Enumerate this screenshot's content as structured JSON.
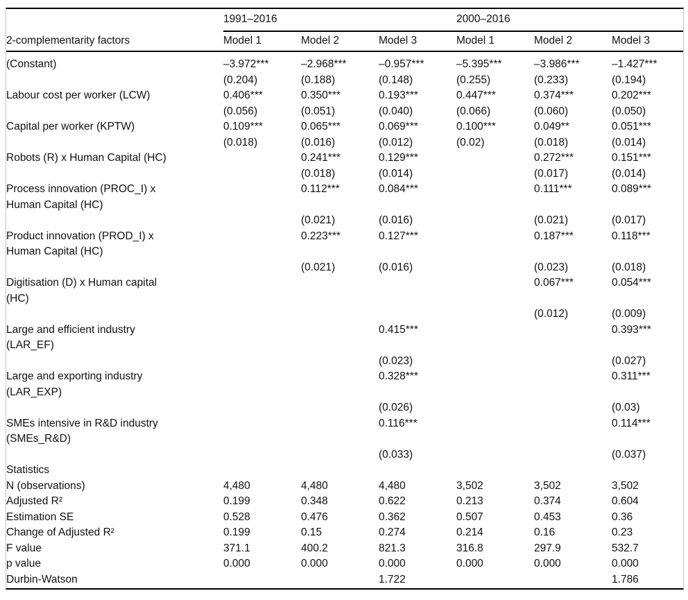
{
  "table": {
    "row_label_header": "2-complementarity factors",
    "col_groups": [
      {
        "label": "1991–2016",
        "models": [
          "Model 1",
          "Model 2",
          "Model 3"
        ]
      },
      {
        "label": "2000–2016",
        "models": [
          "Model 1",
          "Model 2",
          "Model 3"
        ]
      }
    ],
    "rows": [
      {
        "label": "(Constant)",
        "values": [
          "–3.972***",
          "–2.968***",
          "–0.957***",
          "–5.395***",
          "–3.986***",
          "–1.427***"
        ]
      },
      {
        "label": "",
        "values": [
          "(0.204)",
          "(0.188)",
          "(0.148)",
          "(0.255)",
          "(0.233)",
          "(0.194)"
        ]
      },
      {
        "label": "Labour cost per worker (LCW)",
        "values": [
          "0.406***",
          "0.350***",
          "0.193***",
          "0.447***",
          "0.374***",
          "0.202***"
        ]
      },
      {
        "label": "",
        "values": [
          "(0.056)",
          "(0.051)",
          "(0.040)",
          "(0.066)",
          "(0.060)",
          "(0.050)"
        ]
      },
      {
        "label": "Capital per worker (KPTW)",
        "values": [
          "0.109***",
          "0.065***",
          "0.069***",
          "0.100***",
          "0.049**",
          "0.051***"
        ]
      },
      {
        "label": "",
        "values": [
          "(0.018)",
          "(0.016)",
          "(0.012)",
          "(0.02)",
          "(0.018)",
          "(0.014)"
        ]
      },
      {
        "label": "Robots (R) x Human Capital (HC)",
        "values": [
          "",
          "0.241***",
          "0.129***",
          "",
          "0.272***",
          "0.151***"
        ]
      },
      {
        "label": "",
        "values": [
          "",
          "(0.018)",
          "(0.014)",
          "",
          "(0.017)",
          "(0.014)"
        ]
      },
      {
        "label": "Process innovation (PROC_I) x\nHuman Capital (HC)",
        "values": [
          "",
          "0.112***",
          "0.084***",
          "",
          "0.111***",
          "0.089***"
        ]
      },
      {
        "label": "",
        "values": [
          "",
          "(0.021)",
          "(0.016)",
          "",
          "(0.021)",
          "(0.017)"
        ]
      },
      {
        "label": "Product innovation (PROD_I) x\nHuman Capital (HC)",
        "values": [
          "",
          "0.223***",
          "0.127***",
          "",
          "0.187***",
          "0.118***"
        ]
      },
      {
        "label": "",
        "values": [
          "",
          "(0.021)",
          "(0.016)",
          "",
          "(0.023)",
          "(0.018)"
        ]
      },
      {
        "label": "Digitisation (D) x Human capital\n(HC)",
        "values": [
          "",
          "",
          "",
          "",
          "0.067***",
          "0.054***"
        ]
      },
      {
        "label": "",
        "values": [
          "",
          "",
          "",
          "",
          "(0.012)",
          "(0.009)"
        ]
      },
      {
        "label": "Large and efficient industry\n(LAR_EF)",
        "values": [
          "",
          "",
          "0.415***",
          "",
          "",
          "0.393***"
        ]
      },
      {
        "label": "",
        "values": [
          "",
          "",
          "(0.023)",
          "",
          "",
          "(0.027)"
        ]
      },
      {
        "label": "Large and exporting industry\n(LAR_EXP)",
        "values": [
          "",
          "",
          "0.328***",
          "",
          "",
          "0.311***"
        ]
      },
      {
        "label": "",
        "values": [
          "",
          "",
          "(0.026)",
          "",
          "",
          "(0.03)"
        ]
      },
      {
        "label": "SMEs intensive in R&D industry\n(SMEs_R&D)",
        "values": [
          "",
          "",
          "0.116***",
          "",
          "",
          "0.114***"
        ]
      },
      {
        "label": "",
        "values": [
          "",
          "",
          "(0.033)",
          "",
          "",
          "(0.037)"
        ]
      },
      {
        "label": "Statistics",
        "values": [
          "",
          "",
          "",
          "",
          "",
          ""
        ]
      },
      {
        "label": "N (observations)",
        "values": [
          "4,480",
          "4,480",
          "4,480",
          "3,502",
          "3,502",
          "3,502"
        ]
      },
      {
        "label": "Adjusted R²",
        "values": [
          "0.199",
          "0.348",
          "0.622",
          "0.213",
          "0.374",
          "0.604"
        ]
      },
      {
        "label": "Estimation SE",
        "values": [
          "0.528",
          "0.476",
          "0.362",
          "0.507",
          "0.453",
          "0.36"
        ]
      },
      {
        "label": "Change of Adjusted R²",
        "values": [
          "0.199",
          "0.15",
          "0.274",
          "0.214",
          "0.16",
          "0.23"
        ]
      },
      {
        "label": "F value",
        "values": [
          "371.1",
          "400.2",
          "821.3",
          "316.8",
          "297.9",
          "532.7"
        ]
      },
      {
        "label": "p value",
        "values": [
          "0.000",
          "0.000",
          "0.000",
          "0.000",
          "0.000",
          "0.000"
        ]
      },
      {
        "label": "Durbin-Watson",
        "values": [
          "",
          "",
          "1.722",
          "",
          "",
          "1.786"
        ]
      }
    ]
  }
}
